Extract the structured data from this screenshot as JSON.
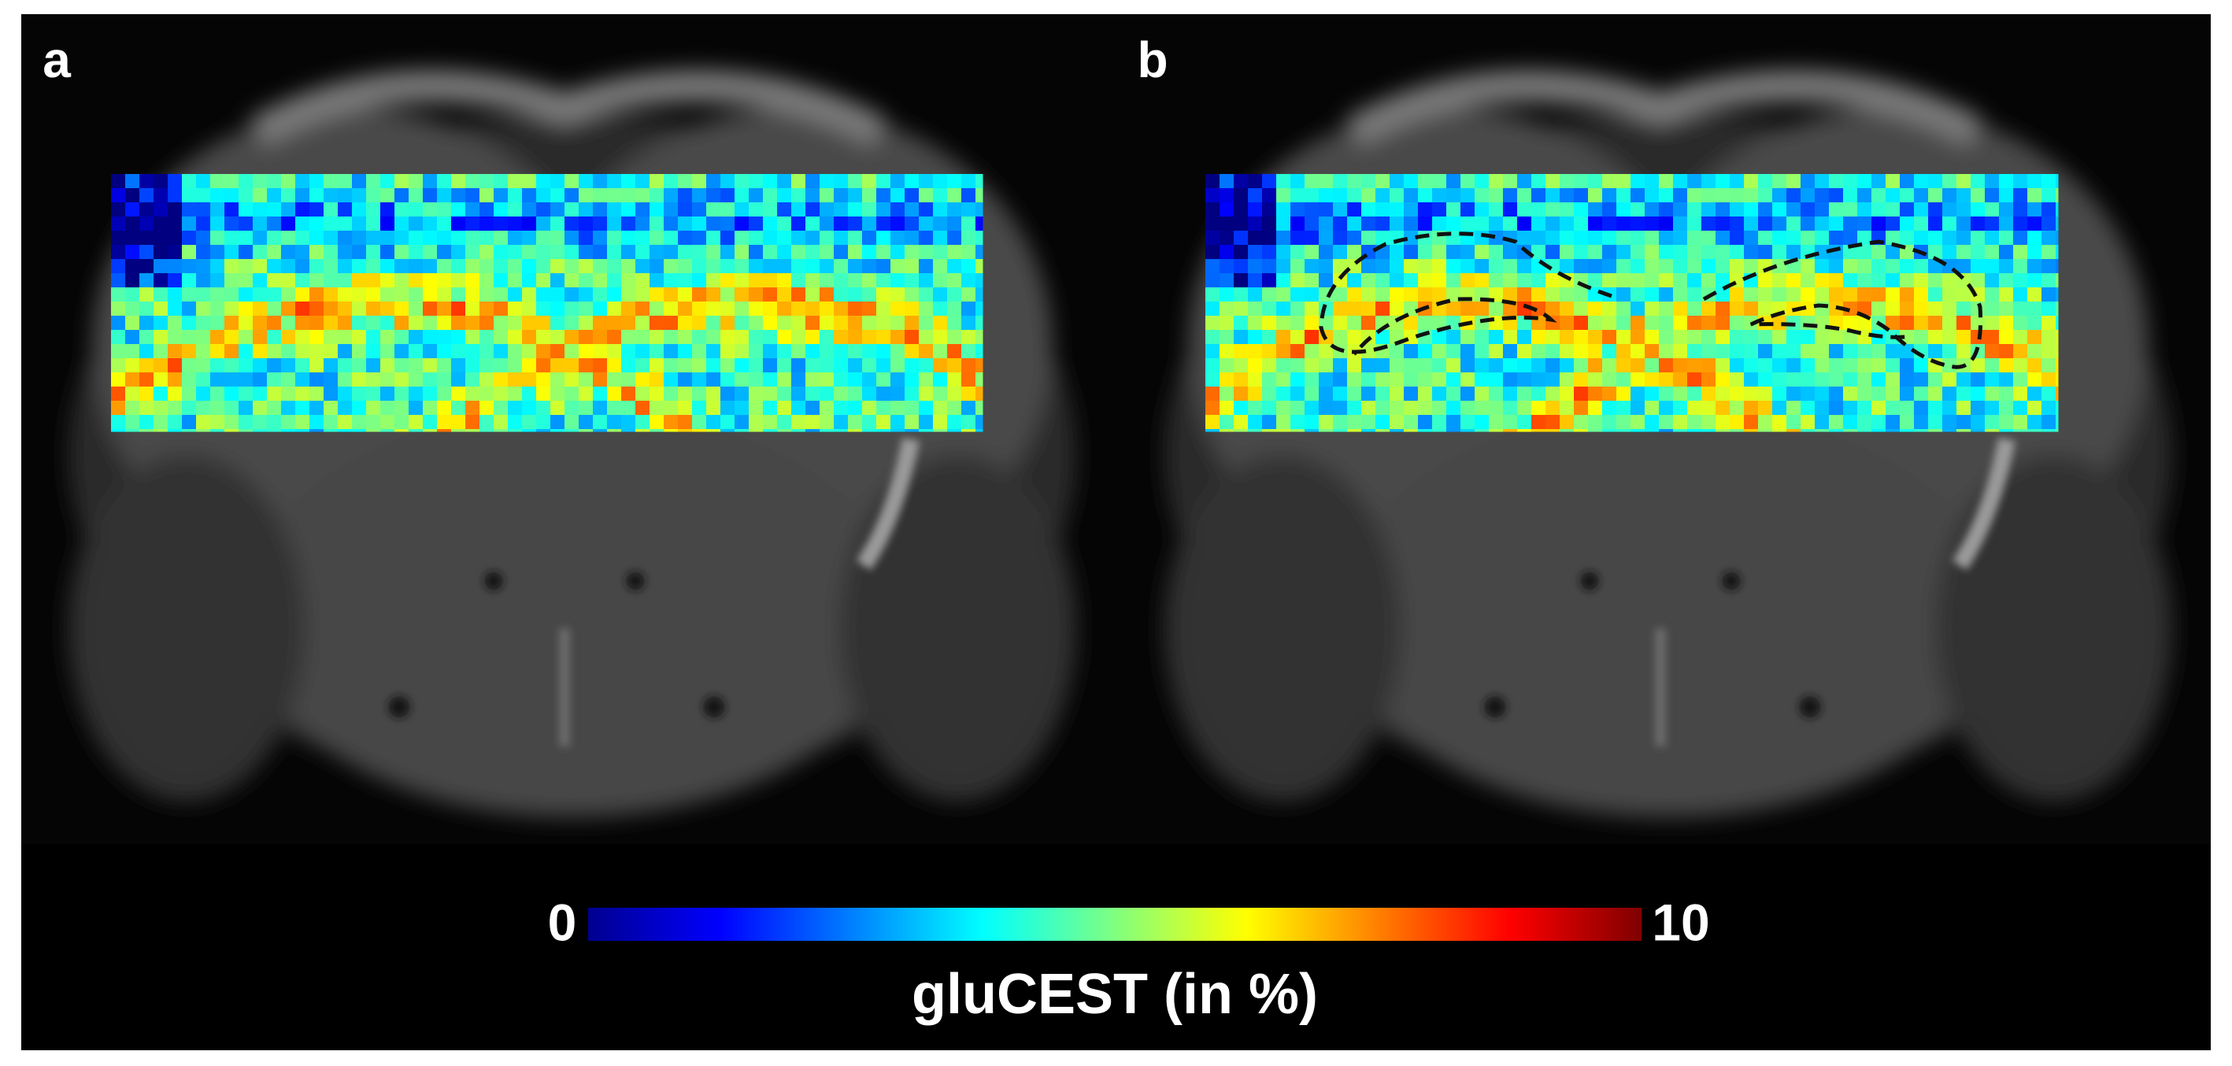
{
  "panels": [
    {
      "label": "a"
    },
    {
      "label": "b"
    }
  ],
  "colorbar": {
    "min": 0,
    "max": 10,
    "label": "gluCEST (in %)"
  }
}
